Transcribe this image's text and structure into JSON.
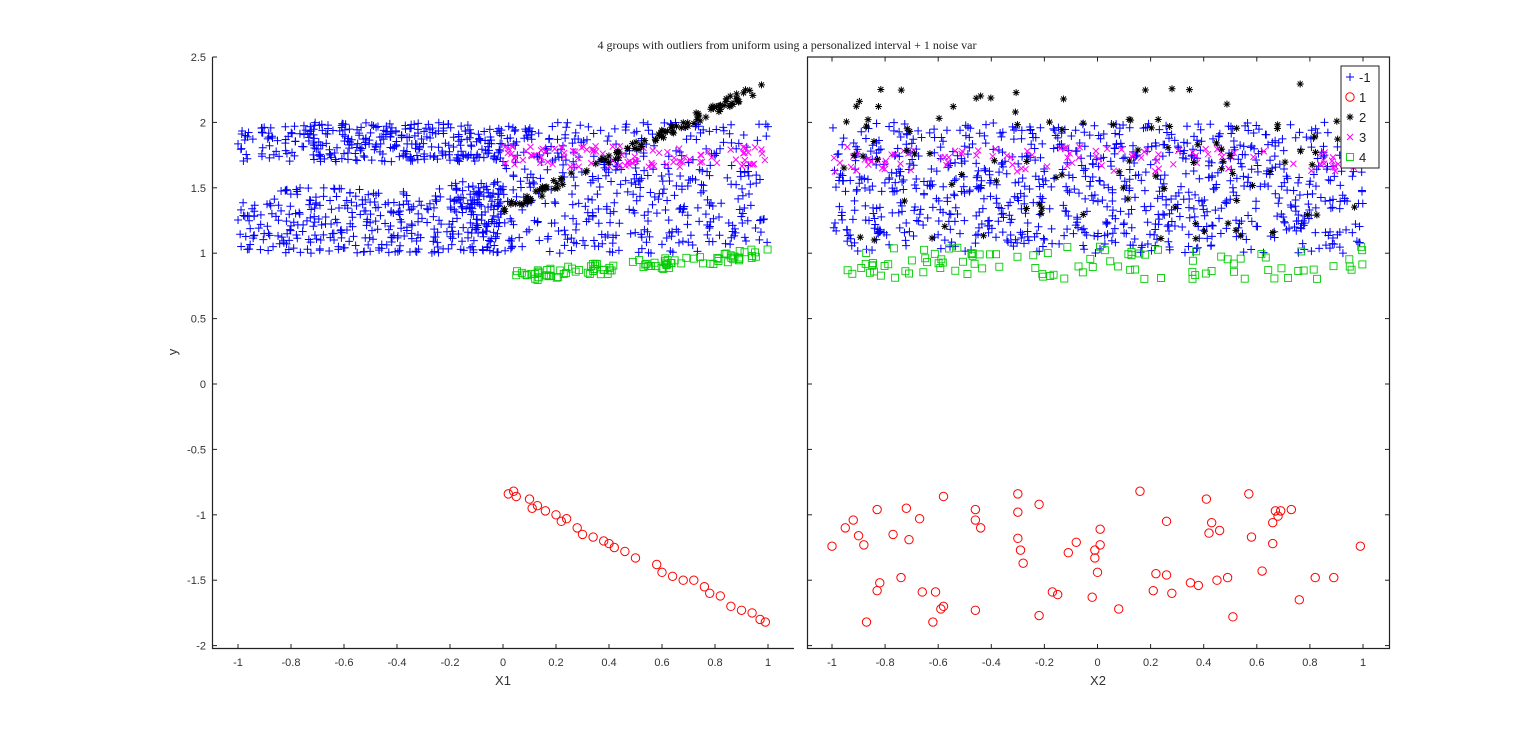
{
  "title": "4 groups with outliers from uniform using a personalized interval  + 1 noise var",
  "chart_data": [
    {
      "type": "scatter",
      "panel": "left",
      "title": "4 groups with outliers from uniform using a personalized interval  + 1 noise var",
      "xlabel": "X1",
      "ylabel": "y",
      "xlim": [
        -1.1,
        1.1
      ],
      "ylim": [
        -2,
        2.5
      ],
      "xticks": [
        "-1",
        "-0.8",
        "-0.6",
        "-0.4",
        "-0.2",
        "0",
        "0.2",
        "0.4",
        "0.6",
        "0.8",
        "1"
      ],
      "yticks": [
        "2.5",
        "2",
        "1.5",
        "1",
        "0.5",
        "0",
        "-0.5",
        "-1",
        "-1.5",
        "-2"
      ],
      "grid": false,
      "series": [
        {
          "name": "-1",
          "marker": "+",
          "color": "#0000ff",
          "description": "dense band: x in [-1,1] y in [1.7,2.0] and y in [1.0,1.5] for x<0; for x>0 y spans [1.0,2.0]",
          "approx_count": 900
        },
        {
          "name": "1",
          "marker": "o",
          "color": "#ff0000",
          "description": "outliers along line y = -0.85 - 0.95*x for x in [0,1]",
          "points": [
            [
              0.02,
              -0.84
            ],
            [
              0.04,
              -0.82
            ],
            [
              0.05,
              -0.86
            ],
            [
              0.1,
              -0.88
            ],
            [
              0.11,
              -0.95
            ],
            [
              0.13,
              -0.93
            ],
            [
              0.16,
              -0.97
            ],
            [
              0.2,
              -1.0
            ],
            [
              0.22,
              -1.05
            ],
            [
              0.24,
              -1.03
            ],
            [
              0.28,
              -1.1
            ],
            [
              0.3,
              -1.15
            ],
            [
              0.34,
              -1.17
            ],
            [
              0.38,
              -1.2
            ],
            [
              0.4,
              -1.22
            ],
            [
              0.42,
              -1.25
            ],
            [
              0.46,
              -1.28
            ],
            [
              0.5,
              -1.33
            ],
            [
              0.58,
              -1.38
            ],
            [
              0.6,
              -1.44
            ],
            [
              0.64,
              -1.47
            ],
            [
              0.68,
              -1.5
            ],
            [
              0.72,
              -1.5
            ],
            [
              0.76,
              -1.55
            ],
            [
              0.78,
              -1.6
            ],
            [
              0.82,
              -1.62
            ],
            [
              0.86,
              -1.7
            ],
            [
              0.9,
              -1.73
            ],
            [
              0.94,
              -1.75
            ],
            [
              0.97,
              -1.8
            ],
            [
              0.99,
              -1.82
            ]
          ]
        },
        {
          "name": "2",
          "marker": "*",
          "color": "#000000",
          "description": "rising line from (0,1.3) to (1,2.3)",
          "approx_count": 110
        },
        {
          "name": "3",
          "marker": "x",
          "color": "#ff00ff",
          "description": "horizontal band y≈1.72-1.8, x in [0,1]",
          "approx_count": 100
        },
        {
          "name": "4",
          "marker": "square",
          "color": "#00cc00",
          "description": "band y≈0.8-1.05, x in [0.05,1], rising",
          "approx_count": 100
        }
      ]
    },
    {
      "type": "scatter",
      "panel": "right",
      "xlabel": "X2",
      "ylabel": "",
      "xlim": [
        -1.1,
        1.1
      ],
      "ylim": [
        -2,
        2.5
      ],
      "xticks": [
        "-1",
        "-0.8",
        "-0.6",
        "-0.4",
        "-0.2",
        "0",
        "0.2",
        "0.4",
        "0.6",
        "0.8",
        "1"
      ],
      "legend": {
        "position": "upper right",
        "entries": [
          "-1",
          "1",
          "2",
          "3",
          "4"
        ]
      },
      "grid": false,
      "series": [
        {
          "name": "-1",
          "marker": "+",
          "color": "#0000ff",
          "description": "uniform noise x in [-1,1], y in [1.0,2.0]",
          "approx_count": 900
        },
        {
          "name": "1",
          "marker": "o",
          "color": "#ff0000",
          "description": "uniform x in [-1,1], y in [-1.85,-0.8]",
          "points": [
            [
              -1.0,
              -1.24
            ],
            [
              -0.95,
              -1.1
            ],
            [
              -0.92,
              -1.04
            ],
            [
              -0.9,
              -1.16
            ],
            [
              -0.88,
              -1.23
            ],
            [
              -0.87,
              -1.82
            ],
            [
              -0.83,
              -0.96
            ],
            [
              -0.82,
              -1.52
            ],
            [
              -0.83,
              -1.58
            ],
            [
              -0.77,
              -1.15
            ],
            [
              -0.74,
              -1.48
            ],
            [
              -0.72,
              -0.95
            ],
            [
              -0.71,
              -1.19
            ],
            [
              -0.67,
              -1.03
            ],
            [
              -0.66,
              -1.59
            ],
            [
              -0.62,
              -1.82
            ],
            [
              -0.61,
              -1.59
            ],
            [
              -0.59,
              -1.72
            ],
            [
              -0.58,
              -0.86
            ],
            [
              -0.58,
              -1.7
            ],
            [
              -0.46,
              -0.96
            ],
            [
              -0.46,
              -1.04
            ],
            [
              -0.44,
              -1.1
            ],
            [
              -0.46,
              -1.73
            ],
            [
              -0.3,
              -0.84
            ],
            [
              -0.3,
              -0.98
            ],
            [
              -0.3,
              -1.18
            ],
            [
              -0.29,
              -1.27
            ],
            [
              -0.28,
              -1.37
            ],
            [
              -0.22,
              -0.92
            ],
            [
              -0.22,
              -1.77
            ],
            [
              -0.17,
              -1.59
            ],
            [
              -0.15,
              -1.61
            ],
            [
              -0.11,
              -1.29
            ],
            [
              -0.08,
              -1.21
            ],
            [
              -0.02,
              -1.63
            ],
            [
              -0.01,
              -1.27
            ],
            [
              -0.01,
              -1.33
            ],
            [
              0.01,
              -1.11
            ],
            [
              0.01,
              -1.23
            ],
            [
              0.0,
              -1.44
            ],
            [
              0.08,
              -1.72
            ],
            [
              0.16,
              -0.82
            ],
            [
              0.21,
              -1.58
            ],
            [
              0.22,
              -1.45
            ],
            [
              0.26,
              -1.05
            ],
            [
              0.26,
              -1.46
            ],
            [
              0.28,
              -1.6
            ],
            [
              0.35,
              -1.52
            ],
            [
              0.38,
              -1.54
            ],
            [
              0.41,
              -0.88
            ],
            [
              0.43,
              -1.06
            ],
            [
              0.42,
              -1.14
            ],
            [
              0.45,
              -1.5
            ],
            [
              0.46,
              -1.12
            ],
            [
              0.49,
              -1.48
            ],
            [
              0.51,
              -1.78
            ],
            [
              0.57,
              -0.84
            ],
            [
              0.58,
              -1.17
            ],
            [
              0.62,
              -1.43
            ],
            [
              0.66,
              -1.06
            ],
            [
              0.67,
              -0.97
            ],
            [
              0.66,
              -1.22
            ],
            [
              0.68,
              -1.01
            ],
            [
              0.69,
              -0.97
            ],
            [
              0.73,
              -0.96
            ],
            [
              0.76,
              -1.65
            ],
            [
              0.82,
              -1.48
            ],
            [
              0.89,
              -1.48
            ],
            [
              0.99,
              -1.24
            ]
          ]
        },
        {
          "name": "2",
          "marker": "*",
          "color": "#000000",
          "description": "uniform x in [-1,1], y in [1.1,2.3]",
          "approx_count": 110
        },
        {
          "name": "3",
          "marker": "x",
          "color": "#ff00ff",
          "description": "uniform x in [-1,1], y in [1.62,1.82]",
          "approx_count": 100
        },
        {
          "name": "4",
          "marker": "square",
          "color": "#00cc00",
          "description": "uniform x in [-1,1], y in [0.78,1.05]",
          "approx_count": 100
        }
      ]
    }
  ],
  "legend": {
    "entries": [
      {
        "label": "-1",
        "marker": "+",
        "color": "#0000ff"
      },
      {
        "label": "1",
        "marker": "o",
        "color": "#ff0000"
      },
      {
        "label": "2",
        "marker": "*",
        "color": "#000000"
      },
      {
        "label": "3",
        "marker": "x",
        "color": "#ff00ff"
      },
      {
        "label": "4",
        "marker": "square",
        "color": "#00cc00"
      }
    ]
  },
  "axes": {
    "left": {
      "xlabel": "X1",
      "ylabel": "y"
    },
    "right": {
      "xlabel": "X2"
    }
  }
}
